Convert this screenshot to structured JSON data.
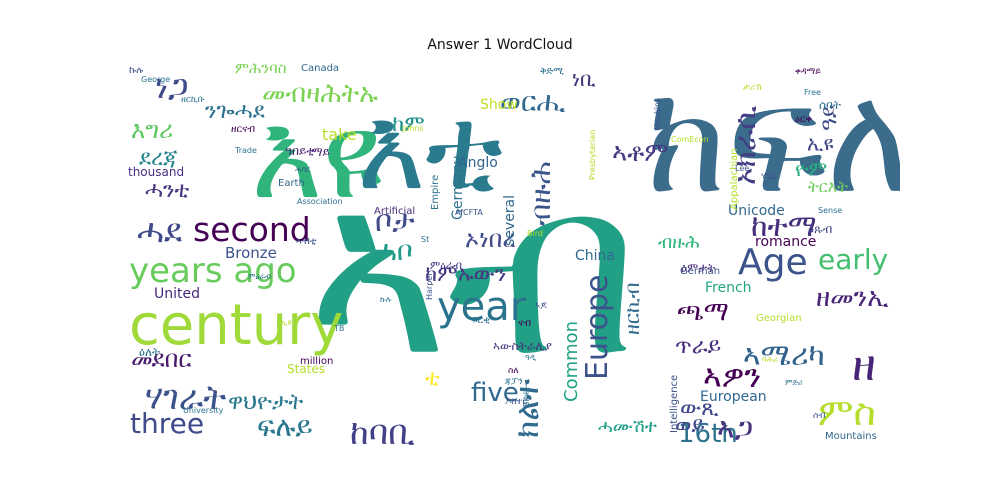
{
  "chart_data": {
    "type": "wordcloud",
    "title": "Answer 1 WordCloud",
    "colormap": "viridis",
    "background": "#ffffff",
    "words": [
      {
        "text": "ኣብ",
        "weight": 100,
        "color": "#21a085"
      },
      {
        "text": "ክፍሊ",
        "weight": 74,
        "color": "#3b6c8c"
      },
      {
        "text": "እዩ",
        "weight": 63,
        "color": "#2fb47c"
      },
      {
        "text": "እቲ",
        "weight": 60,
        "color": "#2a7b8e"
      },
      {
        "text": "century",
        "weight": 36,
        "color": "#9fda3a"
      },
      {
        "text": "years ago",
        "weight": 25,
        "color": "#67cc5c"
      },
      {
        "text": "second",
        "weight": 24,
        "color": "#440154"
      },
      {
        "text": "year",
        "weight": 24,
        "color": "#2c738e"
      },
      {
        "text": "Age",
        "weight": 22,
        "color": "#3b528b"
      },
      {
        "text": "ሓደ",
        "weight": 22,
        "color": "#3e4a89"
      },
      {
        "text": "ምስ",
        "weight": 22,
        "color": "#b5de2b"
      },
      {
        "text": "ዘ",
        "weight": 21,
        "color": "#482576"
      },
      {
        "text": "ሃገራት",
        "weight": 20,
        "color": "#3b528b"
      },
      {
        "text": "ከተማ",
        "weight": 20,
        "color": "#472f7d"
      },
      {
        "text": "ኦክራሲ",
        "weight": 17,
        "color": "#433d84"
      },
      {
        "text": "ወርሒ",
        "weight": 16,
        "color": "#31688e"
      },
      {
        "text": "ኣዎን",
        "weight": 16,
        "color": "#440154"
      },
      {
        "text": "ነጋ",
        "weight": 15,
        "color": "#3e4a89"
      },
      {
        "text": "ኣቶም",
        "weight": 15,
        "color": "#443983"
      },
      {
        "text": "Europe",
        "weight": 15,
        "color": "#3b528b"
      },
      {
        "text": "ኣሜሪካ",
        "weight": 15,
        "color": "#33628d"
      },
      {
        "text": "five",
        "weight": 15,
        "color": "#31688e"
      },
      {
        "text": "three",
        "weight": 14,
        "color": "#3e4a89"
      },
      {
        "text": "ከባቢ",
        "weight": 14,
        "color": "#424086"
      },
      {
        "text": "16th",
        "weight": 13,
        "color": "#2c728e"
      },
      {
        "text": "ክልተ",
        "weight": 13,
        "color": "#306a8e"
      },
      {
        "text": "ብዙሕ",
        "weight": 13,
        "color": "#3a548c"
      },
      {
        "text": "early",
        "weight": 13,
        "color": "#44bf70"
      },
      {
        "text": "ጫማ",
        "weight": 13,
        "color": "#440154"
      },
      {
        "text": "ዘመንኢ",
        "weight": 12,
        "color": "#482576"
      },
      {
        "text": "ዋህዮታት",
        "weight": 12,
        "color": "#2a788e"
      },
      {
        "text": "ፍሉይ",
        "weight": 12,
        "color": "#2a788e"
      },
      {
        "text": "ቲ",
        "weight": 12,
        "color": "#fde725"
      },
      {
        "text": "መደበር",
        "weight": 11,
        "color": "#481b6d"
      },
      {
        "text": "መብዛሕትኡ",
        "weight": 11,
        "color": "#7ad151"
      },
      {
        "text": "ጥራይ",
        "weight": 11,
        "color": "#472d7b"
      },
      {
        "text": "ኣጋ",
        "weight": 11,
        "color": "#46327e"
      },
      {
        "text": "እግሪ",
        "weight": 10,
        "color": "#5ec962"
      },
      {
        "text": "ንጐሓደ",
        "weight": 10,
        "color": "#2c728e"
      },
      {
        "text": "ደረጃ",
        "weight": 10,
        "color": "#25848e"
      },
      {
        "text": "ሓንቲ",
        "weight": 10,
        "color": "#46337e"
      },
      {
        "text": "ውጺ",
        "weight": 10,
        "color": "#3f4889"
      },
      {
        "text": "ሓሙሽተ",
        "weight": 8,
        "color": "#1f9e89"
      },
      {
        "text": "ኦነበረ",
        "weight": 10,
        "color": "#3e4a89"
      },
      {
        "text": "ብዙሕ",
        "weight": 7,
        "color": "#31b57b"
      },
      {
        "text": "ሓቦ",
        "weight": 10,
        "color": "#1f9a8a"
      },
      {
        "text": "ከምኡውን",
        "weight": 9,
        "color": "#453781"
      },
      {
        "text": "ቦታ",
        "weight": 12,
        "color": "#3e4a89"
      },
      {
        "text": "ከም",
        "weight": 9,
        "color": "#21918c"
      },
      {
        "text": "ዓይ",
        "weight": 9,
        "color": "#3e4989"
      },
      {
        "text": "ኢዩ",
        "weight": 9,
        "color": "#3f4788"
      },
      {
        "text": "ነቢ",
        "weight": 8,
        "color": "#46337e"
      },
      {
        "text": "ዘርኪብ",
        "weight": 8,
        "color": "#306a8e"
      },
      {
        "text": "ዮም",
        "weight": 8,
        "color": "#29af7f"
      },
      {
        "text": "ትርእት",
        "weight": 7,
        "color": "#6ccd5a"
      },
      {
        "text": "ምሕንባስ",
        "weight": 7,
        "color": "#7ad151"
      },
      {
        "text": "romance",
        "weight": 7,
        "color": "#440154"
      },
      {
        "text": "European",
        "weight": 7,
        "color": "#31688e"
      },
      {
        "text": "Bronze",
        "weight": 7,
        "color": "#3b528b"
      },
      {
        "text": "United",
        "weight": 7,
        "color": "#482878"
      },
      {
        "text": "take",
        "weight": 7,
        "color": "#b5de2b"
      },
      {
        "text": "Common",
        "weight": 7,
        "color": "#20a386"
      },
      {
        "text": "China",
        "weight": 7,
        "color": "#31688e"
      },
      {
        "text": "Unicode",
        "weight": 7,
        "color": "#31688e"
      },
      {
        "text": "Anglo",
        "weight": 7,
        "color": "#33638d"
      },
      {
        "text": "Germany",
        "weight": 7,
        "color": "#2c728e"
      },
      {
        "text": "several",
        "weight": 7,
        "color": "#31688e"
      },
      {
        "text": "Show",
        "weight": 6,
        "color": "#c2df23"
      },
      {
        "text": "French",
        "weight": 6,
        "color": "#22a884"
      },
      {
        "text": "thousand",
        "weight": 6,
        "color": "#46307e"
      },
      {
        "text": "States",
        "weight": 6,
        "color": "#b5de2b"
      },
      {
        "text": "ዕምታት",
        "weight": 6,
        "color": "#482878"
      },
      {
        "text": "ምዕራብ",
        "weight": 6,
        "color": "#433e85"
      },
      {
        "text": "ኣውስትራሊያ",
        "weight": 6,
        "color": "#46327e"
      },
      {
        "text": "ዕጹብ",
        "weight": 6,
        "color": "#3f4889"
      },
      {
        "text": "ሰባት",
        "weight": 6,
        "color": "#2d708e"
      },
      {
        "text": "ዕለት",
        "weight": 6,
        "color": "#2c728e"
      },
      {
        "text": "ዓበይቲ",
        "weight": 6,
        "color": "#482173"
      },
      {
        "text": "ወይ",
        "weight": 9,
        "color": "#3e4989"
      },
      {
        "text": "ማይ",
        "weight": 5,
        "color": "#481f70"
      },
      {
        "text": "Earth",
        "weight": 5,
        "color": "#31688e"
      },
      {
        "text": "Empire",
        "weight": 5,
        "color": "#2c728e"
      },
      {
        "text": "Intelligence",
        "weight": 5,
        "color": "#3b528b"
      },
      {
        "text": "Artificial",
        "weight": 5,
        "color": "#472a7a"
      },
      {
        "text": "Appalachian",
        "weight": 5,
        "color": "#b5de2b"
      },
      {
        "text": "Mountains",
        "weight": 5,
        "color": "#31688e"
      },
      {
        "text": "German",
        "weight": 5,
        "color": "#3b528b"
      },
      {
        "text": "Georgian",
        "weight": 5,
        "color": "#b5de2b"
      },
      {
        "text": "Canada",
        "weight": 5,
        "color": "#31688e"
      },
      {
        "text": "million",
        "weight": 5,
        "color": "#440154"
      },
      {
        "text": "Trade",
        "weight": 4,
        "color": "#2c728e"
      },
      {
        "text": "Association",
        "weight": 4,
        "color": "#2c728e"
      },
      {
        "text": "University",
        "weight": 4,
        "color": "#2c728e"
      },
      {
        "text": "Hopkins",
        "weight": 4,
        "color": "#3b528b"
      },
      {
        "text": "Presbyterian",
        "weight": 4,
        "color": "#b5de2b"
      },
      {
        "text": "ComEcon",
        "weight": 4,
        "color": "#b5de2b"
      },
      {
        "text": "Free",
        "weight": 4,
        "color": "#2c728e"
      },
      {
        "text": "Sense",
        "weight": 4,
        "color": "#2c728e"
      },
      {
        "text": "Lee",
        "weight": 4,
        "color": "#3b528b"
      },
      {
        "text": "Harper",
        "weight": 4,
        "color": "#3b528b"
      },
      {
        "text": "AfCFTA",
        "weight": 4,
        "color": "#3b528b"
      },
      {
        "text": "George",
        "weight": 4,
        "color": "#2c728e"
      },
      {
        "text": "Johns",
        "weight": 4,
        "color": "#b5de2b"
      },
      {
        "text": "Bird",
        "weight": 4,
        "color": "#b5de2b"
      },
      {
        "text": "Bible",
        "weight": 4,
        "color": "#2c728e"
      },
      {
        "text": "St",
        "weight": 4,
        "color": "#2c728e"
      },
      {
        "text": "TB",
        "weight": 4,
        "color": "#2c728e"
      },
      {
        "text": "ሃገር",
        "weight": 4,
        "color": "#3b528b"
      },
      {
        "text": "ዘርናብ",
        "weight": 4,
        "color": "#440154"
      },
      {
        "text": "ዘርኪቡ",
        "weight": 4,
        "color": "#2c728e"
      },
      {
        "text": "ኣብቲ",
        "weight": 4,
        "color": "#3b528b"
      },
      {
        "text": "ኩሉ",
        "weight": 4,
        "color": "#3b528b"
      },
      {
        "text": "ፍርቂ",
        "weight": 4,
        "color": "#2c728e"
      },
      {
        "text": "ቅድሚ",
        "weight": 4,
        "color": "#2c728e"
      },
      {
        "text": "ዕርቀ",
        "weight": 4,
        "color": "#440154"
      },
      {
        "text": "ናብ",
        "weight": 4,
        "color": "#440154"
      },
      {
        "text": "ስለ",
        "weight": 4,
        "color": "#440154"
      },
      {
        "text": "ጃፓን",
        "weight": 4,
        "color": "#2c728e"
      },
      {
        "text": "ዶክተር",
        "weight": 4,
        "color": "#3b528b"
      },
      {
        "text": "ምዕራብ",
        "weight": 4,
        "color": "#2c728e"
      },
      {
        "text": "ኩሉ",
        "weight": 4,
        "color": "#2c728e"
      },
      {
        "text": "ኢዩ",
        "weight": 4,
        "color": "#b5de2b"
      },
      {
        "text": "ኣጆ",
        "weight": 4,
        "color": "#3b528b"
      },
      {
        "text": "ሰብ",
        "weight": 4,
        "color": "#3b528b"
      },
      {
        "text": "ሕማም",
        "weight": 4,
        "color": "#2c728e"
      },
      {
        "text": "ባሕሪ",
        "weight": 4,
        "color": "#b5de2b"
      },
      {
        "text": "ቀዳማይ",
        "weight": 4,
        "color": "#440154"
      },
      {
        "text": "ታሪኽ",
        "weight": 4,
        "color": "#b5de2b"
      },
      {
        "text": "ዓዲ",
        "weight": 4,
        "color": "#2c728e"
      },
      {
        "text": "ሓባር",
        "weight": 4,
        "color": "#3b528b"
      },
      {
        "text": "ምድሪ",
        "weight": 4,
        "color": "#2c728e"
      }
    ]
  }
}
